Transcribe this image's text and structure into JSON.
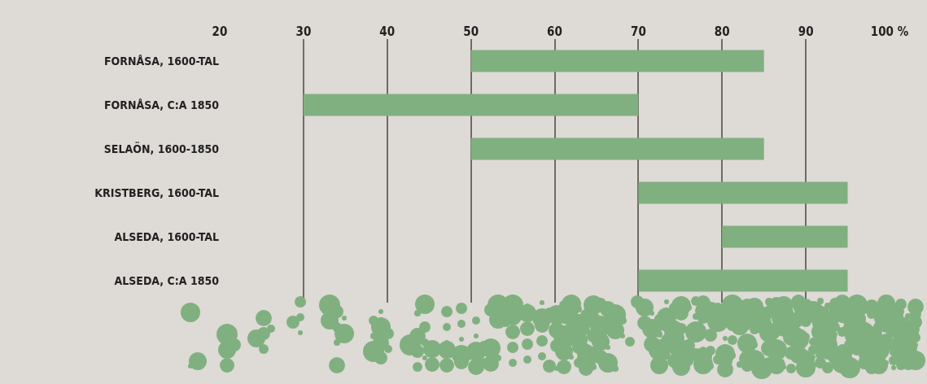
{
  "chart_data": {
    "type": "bar",
    "orientation": "horizontal",
    "categories": [
      "FORNÅSA, 1600-TAL",
      "FORNÅSA, C:A 1850",
      "SELAÖN, 1600-1850",
      "KRISTBERG, 1600-TAL",
      "ALSEDA, 1600-TAL",
      "ALSEDA, C:A 1850"
    ],
    "base": [
      50,
      30,
      50,
      70,
      80,
      70
    ],
    "values": [
      35,
      40,
      35,
      25,
      15,
      25
    ],
    "color": "#80b080",
    "xlim": [
      20,
      100
    ],
    "xticks": [
      20,
      30,
      40,
      50,
      60,
      70,
      80,
      90,
      {
        "value": 100,
        "label": "100 %"
      }
    ],
    "grid": "x"
  }
}
